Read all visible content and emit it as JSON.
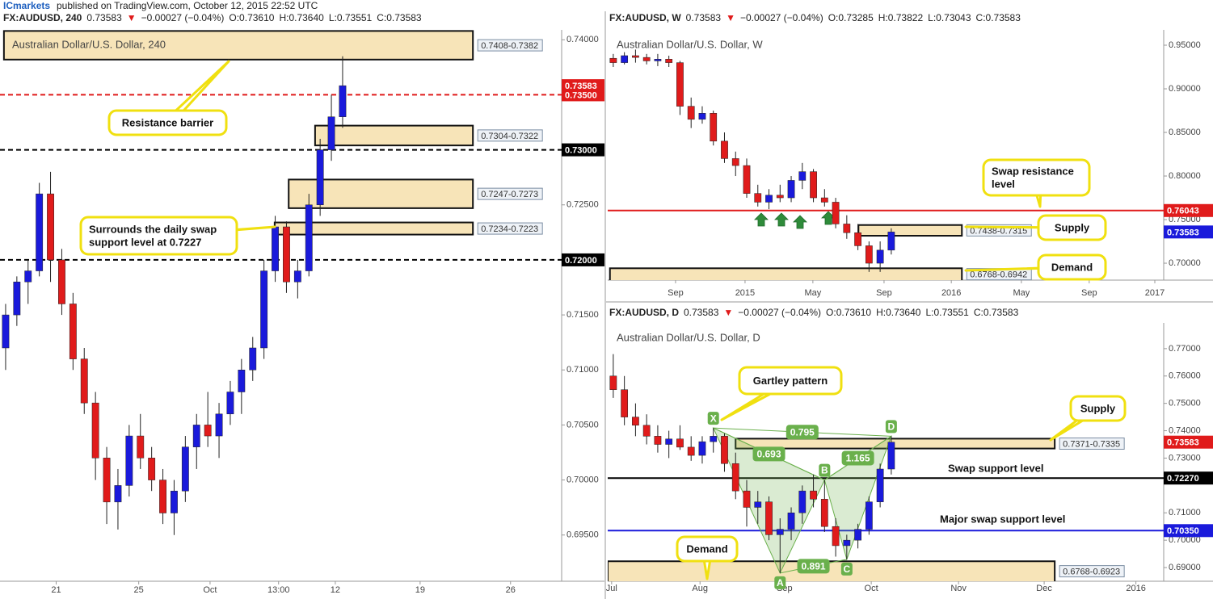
{
  "header": {
    "brand": "ICmarkets",
    "text": "published on TradingView.com, October 12, 2015 22:52 UTC"
  },
  "chart_data": [
    {
      "type": "candlestick",
      "quote": {
        "symbol": "FX:AUDUSD, 240",
        "last": "0.73583",
        "arrow": "▼",
        "change": "−0.00027 (−0.04%)",
        "open": "O:0.73610",
        "high": "H:0.73640",
        "low": "L:0.73551",
        "close": "C:0.73583"
      },
      "title": "Australian Dollar/U.S. Dollar, 240",
      "up_color": "#1a1adb",
      "down_color": "#e01b1b",
      "x": [
        1,
        3,
        5,
        7,
        9,
        11,
        13,
        15,
        17,
        19,
        21,
        23,
        25,
        27,
        29,
        31,
        33,
        35,
        37,
        39,
        41,
        43,
        45,
        47,
        49,
        51,
        53,
        55,
        57,
        59,
        61
      ],
      "open": [
        0.712,
        0.715,
        0.718,
        0.719,
        0.726,
        0.72,
        0.716,
        0.711,
        0.707,
        0.702,
        0.698,
        0.6995,
        0.704,
        0.702,
        0.7,
        0.697,
        0.699,
        0.703,
        0.705,
        0.704,
        0.706,
        0.708,
        0.71,
        0.712,
        0.719,
        0.723,
        0.718,
        0.719,
        0.725,
        0.73,
        0.733
      ],
      "high": [
        0.716,
        0.7185,
        0.72,
        0.727,
        0.728,
        0.721,
        0.717,
        0.712,
        0.708,
        0.703,
        0.701,
        0.705,
        0.706,
        0.703,
        0.701,
        0.7,
        0.704,
        0.706,
        0.708,
        0.707,
        0.709,
        0.711,
        0.713,
        0.72,
        0.724,
        0.7235,
        0.72,
        0.726,
        0.731,
        0.735,
        0.7385
      ],
      "low": [
        0.71,
        0.714,
        0.716,
        0.7185,
        0.718,
        0.715,
        0.71,
        0.706,
        0.7,
        0.696,
        0.6955,
        0.6985,
        0.701,
        0.699,
        0.696,
        0.695,
        0.698,
        0.701,
        0.703,
        0.702,
        0.705,
        0.706,
        0.709,
        0.711,
        0.718,
        0.717,
        0.7165,
        0.7185,
        0.724,
        0.729,
        0.732
      ],
      "close": [
        0.715,
        0.718,
        0.719,
        0.726,
        0.72,
        0.716,
        0.711,
        0.707,
        0.702,
        0.698,
        0.6995,
        0.704,
        0.702,
        0.7,
        0.697,
        0.699,
        0.703,
        0.705,
        0.704,
        0.706,
        0.708,
        0.71,
        0.712,
        0.719,
        0.723,
        0.718,
        0.719,
        0.725,
        0.73,
        0.733,
        0.73583
      ],
      "xlim": [
        0,
        100
      ],
      "xticks": [
        {
          "value": 10,
          "label": "21"
        },
        {
          "value": 24.7,
          "label": "25"
        },
        {
          "value": 37.4,
          "label": "Oct"
        },
        {
          "value": 49.6,
          "label": "13:00"
        },
        {
          "value": 59.7,
          "label": "12"
        },
        {
          "value": 74.8,
          "label": "19"
        },
        {
          "value": 90.9,
          "label": "26"
        }
      ],
      "ylim": [
        0.6908,
        0.7409
      ],
      "yticks": [
        {
          "value": 0.74,
          "label": "0.74000"
        },
        {
          "value": 0.725,
          "label": "0.72500"
        },
        {
          "value": 0.715,
          "label": "0.71500"
        },
        {
          "value": 0.71,
          "label": "0.71000"
        },
        {
          "value": 0.705,
          "label": "0.70500"
        },
        {
          "value": 0.7,
          "label": "0.70000"
        },
        {
          "value": 0.695,
          "label": "0.69500"
        }
      ],
      "zones": [
        {
          "low": 0.7382,
          "high": 0.7408,
          "x": [
            0.7,
            84.2
          ],
          "label": "0.7408-0.7382"
        },
        {
          "low": 0.7304,
          "high": 0.7322,
          "x": [
            56.1,
            84.2
          ],
          "label": "0.7304-0.7322"
        },
        {
          "low": 0.7247,
          "high": 0.7273,
          "x": [
            51.4,
            84.2
          ],
          "label": "0.7247-0.7273"
        },
        {
          "low": 0.7223,
          "high": 0.7234,
          "x": [
            48.9,
            84.2
          ],
          "label": "0.7234-0.7223"
        }
      ],
      "hlines": [
        {
          "value": 0.735,
          "label": "0.73500",
          "color": "#e01b1b",
          "dashed": true
        },
        {
          "value": 0.73,
          "label": "0.73000",
          "color": "#000000",
          "dashed": true
        },
        {
          "value": 0.72,
          "label": "0.72000",
          "color": "#000000",
          "dashed": true
        }
      ],
      "last": {
        "value": 0.73583,
        "label": "0.73583",
        "color": "#e01b1b"
      },
      "callouts": [
        {
          "lines": [
            "Resistance barrier"
          ]
        },
        {
          "lines": [
            "Surrounds the daily swap",
            "support level at 0.7227"
          ]
        }
      ]
    },
    {
      "type": "candlestick",
      "quote": {
        "symbol": "FX:AUDUSD, W",
        "last": "0.73583",
        "arrow": "▼",
        "change": "−0.00027 (−0.04%)",
        "open": "O:0.73285",
        "high": "H:0.73822",
        "low": "L:0.73043",
        "close": "C:0.73583"
      },
      "title": "Australian Dollar/U.S. Dollar, W",
      "up_color": "#1a1adb",
      "down_color": "#e01b1b",
      "x": [
        1,
        3,
        5,
        7,
        9,
        11,
        13,
        15,
        17,
        19,
        21,
        23,
        25,
        27,
        29,
        31,
        33,
        35,
        37,
        39,
        41,
        43,
        45,
        47,
        49,
        51
      ],
      "open": [
        0.935,
        0.93,
        0.938,
        0.936,
        0.932,
        0.934,
        0.93,
        0.88,
        0.865,
        0.872,
        0.84,
        0.82,
        0.812,
        0.78,
        0.77,
        0.778,
        0.775,
        0.795,
        0.805,
        0.775,
        0.77,
        0.745,
        0.735,
        0.72,
        0.7,
        0.715
      ],
      "high": [
        0.94,
        0.942,
        0.945,
        0.94,
        0.94,
        0.938,
        0.932,
        0.89,
        0.88,
        0.875,
        0.85,
        0.828,
        0.82,
        0.79,
        0.785,
        0.79,
        0.8,
        0.815,
        0.808,
        0.785,
        0.775,
        0.755,
        0.745,
        0.725,
        0.725,
        0.74
      ],
      "low": [
        0.925,
        0.928,
        0.93,
        0.928,
        0.926,
        0.925,
        0.87,
        0.855,
        0.86,
        0.835,
        0.815,
        0.8,
        0.775,
        0.765,
        0.762,
        0.77,
        0.77,
        0.785,
        0.77,
        0.765,
        0.74,
        0.728,
        0.715,
        0.69,
        0.69,
        0.71
      ],
      "close": [
        0.93,
        0.938,
        0.936,
        0.932,
        0.934,
        0.93,
        0.88,
        0.865,
        0.872,
        0.84,
        0.82,
        0.812,
        0.78,
        0.77,
        0.778,
        0.775,
        0.795,
        0.805,
        0.775,
        0.77,
        0.745,
        0.735,
        0.72,
        0.7,
        0.715,
        0.73583
      ],
      "xlim": [
        0,
        100
      ],
      "xticks": [
        {
          "value": 12.2,
          "label": "Sep"
        },
        {
          "value": 24.7,
          "label": "2015"
        },
        {
          "value": 36.9,
          "label": "May"
        },
        {
          "value": 49.7,
          "label": "Sep"
        },
        {
          "value": 61.8,
          "label": "2016"
        },
        {
          "value": 74.4,
          "label": "May"
        },
        {
          "value": 86.6,
          "label": "Sep"
        },
        {
          "value": 98.4,
          "label": "2017"
        }
      ],
      "ylim": [
        0.6806,
        0.9676
      ],
      "yticks": [
        {
          "value": 0.95,
          "label": "0.95000"
        },
        {
          "value": 0.9,
          "label": "0.90000"
        },
        {
          "value": 0.85,
          "label": "0.85000"
        },
        {
          "value": 0.8,
          "label": "0.80000"
        },
        {
          "value": 0.75,
          "label": "0.75000"
        },
        {
          "value": 0.7,
          "label": "0.70000"
        }
      ],
      "zones": [
        {
          "low": 0.7315,
          "high": 0.7438,
          "x": [
            45.1,
            63.7
          ],
          "label": "0.7438-0.7315"
        },
        {
          "low": 0.6768,
          "high": 0.6942,
          "x": [
            0.4,
            63.7
          ],
          "label": "0.6768-0.6942"
        }
      ],
      "hlines": [
        {
          "value": 0.76043,
          "label": "0.76043",
          "color": "#e01b1b",
          "dashed": false
        }
      ],
      "last": {
        "value": 0.73583,
        "label": "0.73583",
        "color": "#1a1adb"
      },
      "callouts": [
        {
          "lines": [
            "Swap resistance",
            "level"
          ]
        },
        {
          "lines": [
            "Supply"
          ]
        },
        {
          "lines": [
            "Demand"
          ]
        }
      ]
    },
    {
      "type": "candlestick",
      "quote": {
        "symbol": "FX:AUDUSD, D",
        "last": "0.73583",
        "arrow": "▼",
        "change": "−0.00027 (−0.04%)",
        "open": "O:0.73610",
        "high": "H:0.73640",
        "low": "L:0.73551",
        "close": "C:0.73583"
      },
      "title": "Australian Dollar/U.S. Dollar, D",
      "up_color": "#1a1adb",
      "down_color": "#e01b1b",
      "x": [
        1,
        3,
        5,
        7,
        9,
        11,
        13,
        15,
        17,
        19,
        21,
        23,
        25,
        27,
        29,
        31,
        33,
        35,
        37,
        39,
        41,
        43,
        45,
        47,
        49,
        51
      ],
      "open": [
        0.76,
        0.755,
        0.745,
        0.742,
        0.738,
        0.735,
        0.737,
        0.734,
        0.731,
        0.736,
        0.738,
        0.728,
        0.718,
        0.712,
        0.714,
        0.702,
        0.704,
        0.71,
        0.718,
        0.715,
        0.705,
        0.698,
        0.7,
        0.704,
        0.714,
        0.726
      ],
      "high": [
        0.768,
        0.76,
        0.75,
        0.746,
        0.742,
        0.74,
        0.742,
        0.738,
        0.738,
        0.741,
        0.739,
        0.732,
        0.722,
        0.718,
        0.716,
        0.708,
        0.712,
        0.72,
        0.724,
        0.722,
        0.708,
        0.702,
        0.706,
        0.716,
        0.728,
        0.738
      ],
      "low": [
        0.752,
        0.742,
        0.738,
        0.735,
        0.732,
        0.73,
        0.733,
        0.729,
        0.728,
        0.732,
        0.725,
        0.715,
        0.705,
        0.706,
        0.7,
        0.688,
        0.7,
        0.706,
        0.712,
        0.703,
        0.694,
        0.693,
        0.697,
        0.702,
        0.712,
        0.724
      ],
      "close": [
        0.755,
        0.745,
        0.742,
        0.738,
        0.735,
        0.737,
        0.734,
        0.731,
        0.736,
        0.738,
        0.728,
        0.718,
        0.712,
        0.714,
        0.702,
        0.704,
        0.71,
        0.718,
        0.715,
        0.705,
        0.698,
        0.7,
        0.704,
        0.714,
        0.726,
        0.73583
      ],
      "xlim": [
        0,
        100
      ],
      "xticks": [
        {
          "value": 0.7,
          "label": "Jul"
        },
        {
          "value": 16.6,
          "label": "Aug"
        },
        {
          "value": 31.8,
          "label": "Sep"
        },
        {
          "value": 47.4,
          "label": "Oct"
        },
        {
          "value": 63.1,
          "label": "Nov"
        },
        {
          "value": 78.5,
          "label": "Dec"
        },
        {
          "value": 95,
          "label": "2016"
        }
      ],
      "ylim": [
        0.685,
        0.7794
      ],
      "yticks": [
        {
          "value": 0.77,
          "label": "0.77000"
        },
        {
          "value": 0.76,
          "label": "0.76000"
        },
        {
          "value": 0.75,
          "label": "0.75000"
        },
        {
          "value": 0.74,
          "label": "0.74000"
        },
        {
          "value": 0.73,
          "label": "0.73000"
        },
        {
          "value": 0.71,
          "label": "0.71000"
        },
        {
          "value": 0.7,
          "label": "0.70000"
        },
        {
          "value": 0.69,
          "label": "0.69000"
        }
      ],
      "zones": [
        {
          "low": 0.7335,
          "high": 0.7371,
          "x": [
            23,
            80.4
          ],
          "label": "0.7371-0.7335"
        },
        {
          "low": 0.6768,
          "high": 0.6923,
          "x": [
            0,
            80.4
          ],
          "label": "0.6768-0.6923"
        }
      ],
      "hlines": [
        {
          "value": 0.7227,
          "label": "0.72270",
          "color": "#000000",
          "dashed": false
        },
        {
          "value": 0.7035,
          "label": "0.70350",
          "color": "#1a1adb",
          "dashed": false
        }
      ],
      "last": {
        "value": 0.73583,
        "label": "0.73583",
        "color": "#e01b1b"
      },
      "callouts": [
        {
          "lines": [
            "Gartley pattern"
          ]
        },
        {
          "lines": [
            "Supply"
          ]
        },
        {
          "lines": [
            "Demand"
          ]
        }
      ],
      "labels": [
        "Swap support level",
        "Major swap support level"
      ],
      "pattern": {
        "color": "#6ab04c",
        "points": [
          {
            "label": "X",
            "x": 19,
            "y": 0.741
          },
          {
            "label": "A",
            "x": 31,
            "y": 0.688
          },
          {
            "label": "B",
            "x": 39,
            "y": 0.722
          },
          {
            "label": "C",
            "x": 43,
            "y": 0.693
          },
          {
            "label": "D",
            "x": 51,
            "y": 0.738
          }
        ],
        "ratios": [
          "0.693",
          "0.795",
          "1.165",
          "0.891"
        ]
      }
    }
  ]
}
